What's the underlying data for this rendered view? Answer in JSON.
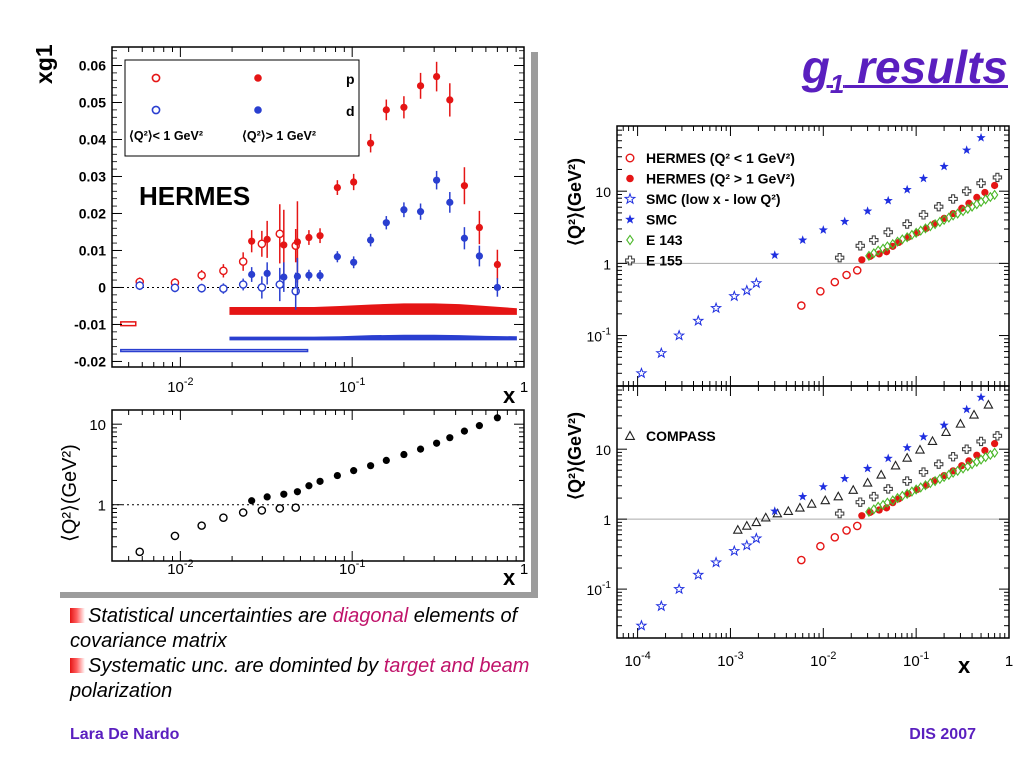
{
  "slide": {
    "title_main": "g",
    "title_sub": "1",
    "title_rest": " results",
    "footer_left": "Lara De Nardo",
    "footer_right": "DIS 2007",
    "bullets": [
      {
        "before": "Statistical uncertainties are ",
        "highlight": "diagonal",
        "after": " elements of covariance matrix"
      },
      {
        "before": "Systematic unc. are dominted by ",
        "highlight": "target and beam",
        "after": " polarization"
      }
    ],
    "colors": {
      "title": "#5a1fbf",
      "highlight": "#c0136a",
      "p": "#e51515",
      "d": "#2a3fd0",
      "smc": "#1f2fe0",
      "e143": "#4cb82a"
    }
  },
  "chart_data": [
    {
      "type": "scatter",
      "panel": "xg1-vs-x",
      "xlabel": "x",
      "ylabel": "xg1",
      "xscale": "log",
      "xlim": [
        0.004,
        1
      ],
      "ylim": [
        -0.0215,
        0.065
      ],
      "x_ticks": [
        "10^-2",
        "10^-1",
        "1"
      ],
      "y_ticks": [
        "0.06",
        "0.05",
        "0.04",
        "0.03",
        "0.02",
        "0.01",
        "0",
        "-0.01",
        "-0.02"
      ],
      "annotation": "HERMES",
      "legend": {
        "placement": "top-left",
        "columns": [
          "p",
          "d"
        ],
        "rows": [
          "⟨Q²⟩< 1 GeV²",
          "⟨Q²⟩> 1 GeV²"
        ]
      },
      "zero_line": true,
      "series": [
        {
          "name": "p  ⟨Q²⟩< 1 GeV²",
          "marker": "open-circle",
          "color": "#e51515",
          "x": [
            0.0058,
            0.0093,
            0.0133,
            0.0178,
            0.0232,
            0.0298,
            0.0379,
            0.0469
          ],
          "y": [
            0.0015,
            0.0013,
            0.0033,
            0.0045,
            0.007,
            0.0118,
            0.0145,
            0.0113
          ],
          "err": [
            0.0012,
            0.0012,
            0.0014,
            0.0018,
            0.0025,
            0.0035,
            0.008,
            0.0045
          ]
        },
        {
          "name": "p  ⟨Q²⟩> 1 GeV²",
          "marker": "filled-circle",
          "color": "#e51515",
          "x": [
            0.026,
            0.032,
            0.04,
            0.048,
            0.056,
            0.065,
            0.082,
            0.102,
            0.128,
            0.158,
            0.2,
            0.25,
            0.31,
            0.37,
            0.45,
            0.55,
            0.7
          ],
          "y": [
            0.0125,
            0.013,
            0.0115,
            0.0123,
            0.0135,
            0.014,
            0.027,
            0.0285,
            0.039,
            0.048,
            0.0487,
            0.0545,
            0.057,
            0.0507,
            0.0275,
            0.0162,
            0.0062
          ],
          "err": [
            0.003,
            0.005,
            0.0095,
            0.011,
            0.002,
            0.002,
            0.002,
            0.0022,
            0.0025,
            0.0028,
            0.003,
            0.0035,
            0.004,
            0.0045,
            0.005,
            0.0045,
            0.004
          ]
        },
        {
          "name": "d  ⟨Q²⟩< 1 GeV²",
          "marker": "open-circle",
          "color": "#2a3fd0",
          "x": [
            0.0058,
            0.0093,
            0.0133,
            0.0178,
            0.0232,
            0.0298,
            0.0379,
            0.0469
          ],
          "y": [
            0.0005,
            -0.0001,
            -0.0002,
            -0.0003,
            0.0008,
            0.0,
            0.0008,
            -0.001
          ],
          "err": [
            0.0012,
            0.0012,
            0.0012,
            0.0014,
            0.0016,
            0.003,
            0.0045,
            0.005
          ]
        },
        {
          "name": "d  ⟨Q²⟩> 1 GeV²",
          "marker": "filled-circle",
          "color": "#2a3fd0",
          "x": [
            0.026,
            0.032,
            0.04,
            0.048,
            0.056,
            0.065,
            0.082,
            0.102,
            0.128,
            0.158,
            0.2,
            0.25,
            0.31,
            0.37,
            0.45,
            0.55,
            0.7
          ],
          "y": [
            0.0035,
            0.0038,
            0.0028,
            0.003,
            0.0033,
            0.0032,
            0.0083,
            0.0068,
            0.0128,
            0.0175,
            0.021,
            0.0205,
            0.029,
            0.023,
            0.0133,
            0.0085,
            0.0
          ],
          "err": [
            0.002,
            0.003,
            0.004,
            0.005,
            0.0015,
            0.0015,
            0.0015,
            0.0016,
            0.0017,
            0.0018,
            0.002,
            0.0022,
            0.0025,
            0.0028,
            0.003,
            0.0028,
            0.0025
          ]
        }
      ],
      "systematic_bands": [
        {
          "series": "p  ⟨Q²⟩< 1 GeV²",
          "style": "open",
          "color": "#e51515",
          "x": [
            0.0045,
            0.0055
          ],
          "lower": -0.0103,
          "upper": [
            -0.0093,
            -0.0093
          ]
        },
        {
          "series": "p  ⟨Q²⟩> 1 GeV²",
          "style": "filled",
          "color": "#e51515",
          "x": [
            0.0195,
            0.06,
            0.085,
            0.13,
            0.2,
            0.3,
            0.42,
            0.6,
            0.9
          ],
          "lower": -0.0072,
          "upper": [
            -0.0055,
            -0.0055,
            -0.0052,
            -0.0048,
            -0.0045,
            -0.0045,
            -0.0047,
            -0.0052,
            -0.0058
          ]
        },
        {
          "series": "d  ⟨Q²⟩< 1 GeV²",
          "style": "open",
          "color": "#2a3fd0",
          "x": [
            0.0045,
            0.055
          ],
          "lower": -0.0173,
          "upper": [
            -0.0168,
            -0.0168
          ]
        },
        {
          "series": "d  ⟨Q²⟩> 1 GeV²",
          "style": "filled",
          "color": "#2a3fd0",
          "x": [
            0.0195,
            0.06,
            0.085,
            0.13,
            0.2,
            0.3,
            0.42,
            0.6,
            0.9
          ],
          "lower": -0.0141,
          "upper": [
            -0.0135,
            -0.0135,
            -0.0134,
            -0.0131,
            -0.013,
            -0.013,
            -0.0131,
            -0.0133,
            -0.0134
          ]
        }
      ]
    },
    {
      "type": "scatter",
      "panel": "q2-vs-x-hermes",
      "xlabel": "x",
      "ylabel": "⟨Q²⟩(GeV²)",
      "xscale": "log",
      "yscale": "log",
      "xlim": [
        0.004,
        1
      ],
      "ylim": [
        0.2,
        15
      ],
      "x_ticks": [
        "10^-2",
        "10^-1",
        "1"
      ],
      "y_ticks": [
        "10",
        "1"
      ],
      "ref_line": 1,
      "series": [
        {
          "name": "⟨Q²⟩< 1 GeV²",
          "marker": "open-circle",
          "color": "#000000",
          "x": [
            0.0058,
            0.0093,
            0.0133,
            0.0178,
            0.0232,
            0.0298,
            0.0379,
            0.0469
          ],
          "y": [
            0.26,
            0.41,
            0.55,
            0.69,
            0.8,
            0.85,
            0.9,
            0.92
          ]
        },
        {
          "name": "⟨Q²⟩> 1 GeV²",
          "marker": "filled-circle",
          "color": "#000000",
          "x": [
            0.026,
            0.032,
            0.04,
            0.048,
            0.056,
            0.065,
            0.082,
            0.102,
            0.128,
            0.158,
            0.2,
            0.25,
            0.31,
            0.37,
            0.45,
            0.55,
            0.7
          ],
          "y": [
            1.12,
            1.25,
            1.35,
            1.45,
            1.72,
            1.95,
            2.3,
            2.65,
            3.05,
            3.55,
            4.2,
            4.9,
            5.8,
            6.8,
            8.2,
            9.6,
            12
          ]
        }
      ]
    },
    {
      "type": "scatter",
      "panel": "q2-vs-x-experiments",
      "xlabel": "x",
      "ylabel": "⟨Q²⟩(GeV²)",
      "xscale": "log",
      "yscale": "log",
      "xlim": [
        6e-05,
        1
      ],
      "ylim": [
        0.02,
        80
      ],
      "x_ticks": [
        "10^-4",
        "10^-3",
        "10^-2",
        "10^-1",
        "1"
      ],
      "y_ticks": [
        "10",
        "1",
        "10^-1"
      ],
      "ref_line": 1,
      "legend": {
        "placement": "top-left"
      },
      "series": [
        {
          "name": "HERMES (Q² < 1 GeV²)",
          "marker": "open-circle",
          "color": "#e51515",
          "x": [
            0.0058,
            0.0093,
            0.0133,
            0.0178,
            0.0232
          ],
          "y": [
            0.26,
            0.41,
            0.55,
            0.69,
            0.8
          ]
        },
        {
          "name": "HERMES (Q² > 1 GeV²)",
          "marker": "filled-circle",
          "color": "#e51515",
          "x": [
            0.026,
            0.032,
            0.04,
            0.048,
            0.056,
            0.065,
            0.082,
            0.102,
            0.128,
            0.158,
            0.2,
            0.25,
            0.31,
            0.37,
            0.45,
            0.55,
            0.7
          ],
          "y": [
            1.12,
            1.25,
            1.35,
            1.45,
            1.72,
            1.95,
            2.3,
            2.65,
            3.05,
            3.55,
            4.2,
            4.9,
            5.8,
            6.8,
            8.2,
            9.6,
            12
          ]
        },
        {
          "name": "SMC (low x - low Q²)",
          "marker": "open-star",
          "color": "#1f2fe0",
          "x": [
            0.00011,
            0.00018,
            0.00028,
            0.00045,
            0.0007,
            0.0011,
            0.0015,
            0.0019
          ],
          "y": [
            0.03,
            0.057,
            0.1,
            0.16,
            0.24,
            0.35,
            0.42,
            0.53
          ]
        },
        {
          "name": "SMC",
          "marker": "filled-star",
          "color": "#1f2fe0",
          "x": [
            0.003,
            0.006,
            0.01,
            0.017,
            0.03,
            0.05,
            0.08,
            0.12,
            0.2,
            0.35,
            0.5
          ],
          "y": [
            1.3,
            2.1,
            2.9,
            3.8,
            5.3,
            7.4,
            10.5,
            15,
            22,
            37,
            55
          ]
        },
        {
          "name": "E 143",
          "marker": "open-diamond",
          "color": "#4cb82a",
          "x": [
            0.031,
            0.035,
            0.039,
            0.044,
            0.049,
            0.056,
            0.063,
            0.071,
            0.08,
            0.09,
            0.1,
            0.112,
            0.126,
            0.142,
            0.16,
            0.18,
            0.2,
            0.225,
            0.25,
            0.28,
            0.32,
            0.36,
            0.4,
            0.45,
            0.5,
            0.56,
            0.63,
            0.7
          ],
          "y": [
            1.27,
            1.38,
            1.5,
            1.6,
            1.72,
            1.85,
            2.0,
            2.15,
            2.3,
            2.48,
            2.65,
            2.84,
            3.05,
            3.27,
            3.5,
            3.75,
            4.0,
            4.3,
            4.6,
            4.9,
            5.3,
            5.7,
            6.1,
            6.6,
            7.1,
            7.7,
            8.3,
            8.9
          ]
        },
        {
          "name": "E 155",
          "marker": "open-cross",
          "color": "#444444",
          "x": [
            0.015,
            0.025,
            0.035,
            0.05,
            0.08,
            0.12,
            0.175,
            0.25,
            0.35,
            0.5,
            0.75
          ],
          "y": [
            1.2,
            1.75,
            2.1,
            2.7,
            3.5,
            4.7,
            6.1,
            7.8,
            10.0,
            12.9,
            15.5
          ]
        }
      ]
    },
    {
      "type": "scatter",
      "panel": "q2-vs-x-with-compass",
      "xlabel": "x",
      "ylabel": "⟨Q²⟩(GeV²)",
      "xscale": "log",
      "yscale": "log",
      "xlim": [
        6e-05,
        1
      ],
      "ylim": [
        0.02,
        80
      ],
      "x_ticks": [
        "10^-4",
        "10^-3",
        "10^-2",
        "10^-1",
        "1"
      ],
      "y_ticks": [
        "10",
        "1",
        "10^-1"
      ],
      "ref_line": 1,
      "legend": {
        "placement": "top-left"
      },
      "series": [
        {
          "name": "COMPASS",
          "marker": "open-triangle",
          "color": "#222222",
          "x": [
            0.0012,
            0.0015,
            0.0019,
            0.0024,
            0.0032,
            0.0042,
            0.0056,
            0.0075,
            0.0105,
            0.0145,
            0.021,
            0.03,
            0.042,
            0.06,
            0.08,
            0.11,
            0.15,
            0.21,
            0.3,
            0.42,
            0.6
          ],
          "y": [
            0.7,
            0.8,
            0.9,
            1.05,
            1.2,
            1.3,
            1.45,
            1.65,
            1.85,
            2.1,
            2.6,
            3.3,
            4.3,
            5.8,
            7.5,
            9.8,
            13,
            17.5,
            23,
            31,
            43
          ]
        },
        {
          "name": "HERMES (Q² < 1 GeV²)",
          "marker": "open-circle",
          "color": "#e51515",
          "x": [
            0.0058,
            0.0093,
            0.0133,
            0.0178,
            0.0232
          ],
          "y": [
            0.26,
            0.41,
            0.55,
            0.69,
            0.8
          ]
        },
        {
          "name": "HERMES (Q² > 1 GeV²)",
          "marker": "filled-circle",
          "color": "#e51515",
          "x": [
            0.026,
            0.032,
            0.04,
            0.048,
            0.056,
            0.065,
            0.082,
            0.102,
            0.128,
            0.158,
            0.2,
            0.25,
            0.31,
            0.37,
            0.45,
            0.55,
            0.7
          ],
          "y": [
            1.12,
            1.25,
            1.35,
            1.45,
            1.72,
            1.95,
            2.3,
            2.65,
            3.05,
            3.55,
            4.2,
            4.9,
            5.8,
            6.8,
            8.2,
            9.6,
            12
          ]
        },
        {
          "name": "SMC (low x - low Q²)",
          "marker": "open-star",
          "color": "#1f2fe0",
          "x": [
            0.00011,
            0.00018,
            0.00028,
            0.00045,
            0.0007,
            0.0011,
            0.0015,
            0.0019
          ],
          "y": [
            0.03,
            0.057,
            0.1,
            0.16,
            0.24,
            0.35,
            0.42,
            0.53
          ]
        },
        {
          "name": "SMC",
          "marker": "filled-star",
          "color": "#1f2fe0",
          "x": [
            0.003,
            0.006,
            0.01,
            0.017,
            0.03,
            0.05,
            0.08,
            0.12,
            0.2,
            0.35,
            0.5
          ],
          "y": [
            1.3,
            2.1,
            2.9,
            3.8,
            5.3,
            7.4,
            10.5,
            15,
            22,
            37,
            55
          ]
        },
        {
          "name": "E 143",
          "marker": "open-diamond",
          "color": "#4cb82a",
          "x": [
            0.031,
            0.035,
            0.039,
            0.044,
            0.049,
            0.056,
            0.063,
            0.071,
            0.08,
            0.09,
            0.1,
            0.112,
            0.126,
            0.142,
            0.16,
            0.18,
            0.2,
            0.225,
            0.25,
            0.28,
            0.32,
            0.36,
            0.4,
            0.45,
            0.5,
            0.56,
            0.63,
            0.7
          ],
          "y": [
            1.27,
            1.38,
            1.5,
            1.6,
            1.72,
            1.85,
            2.0,
            2.15,
            2.3,
            2.48,
            2.65,
            2.84,
            3.05,
            3.27,
            3.5,
            3.75,
            4.0,
            4.3,
            4.6,
            4.9,
            5.3,
            5.7,
            6.1,
            6.6,
            7.1,
            7.7,
            8.3,
            8.9
          ]
        },
        {
          "name": "E 155",
          "marker": "open-cross",
          "color": "#444444",
          "x": [
            0.015,
            0.025,
            0.035,
            0.05,
            0.08,
            0.12,
            0.175,
            0.25,
            0.35,
            0.5,
            0.75
          ],
          "y": [
            1.2,
            1.75,
            2.1,
            2.7,
            3.5,
            4.7,
            6.1,
            7.8,
            10.0,
            12.9,
            15.5
          ]
        }
      ]
    }
  ]
}
